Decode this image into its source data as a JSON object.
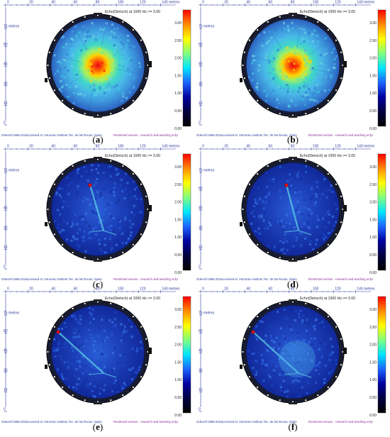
{
  "ruler": {
    "x_ticks": [
      "0",
      "20",
      "40",
      "60",
      "80",
      "100",
      "120",
      "140 metres"
    ],
    "y_ticks": [
      "75 metres",
      "60",
      "45",
      "30",
      "15",
      "0"
    ]
  },
  "legend_title": "Echo(Dietsch)  at 1000 Hz >= 3.00",
  "scale_ticks": [
    "3.00",
    "2.50",
    "2.00",
    "1.50",
    "1.00",
    "0.50",
    "0.00"
  ],
  "footer": {
    "copyright": "Odeon©1985-2021",
    "license": "Licensed to: Intromac Instituto Tec. de las Rocas, Spain",
    "restriction": "Restricted version - research and teaching only!"
  },
  "colors": {
    "ruler": "#2e3a9e",
    "scale": [
      "#ff0000",
      "#ff8c00",
      "#ffff00",
      "#7fff7f",
      "#00e5ff",
      "#1e64ff",
      "#0000a0",
      "#000040",
      "#000000"
    ]
  },
  "panels": [
    {
      "id": "a",
      "caption": "(a)"
    },
    {
      "id": "b",
      "caption": "(b)"
    },
    {
      "id": "c",
      "caption": "(c)"
    },
    {
      "id": "d",
      "caption": "(d)"
    },
    {
      "id": "e",
      "caption": "(e)"
    },
    {
      "id": "f",
      "caption": "(f)"
    }
  ]
}
